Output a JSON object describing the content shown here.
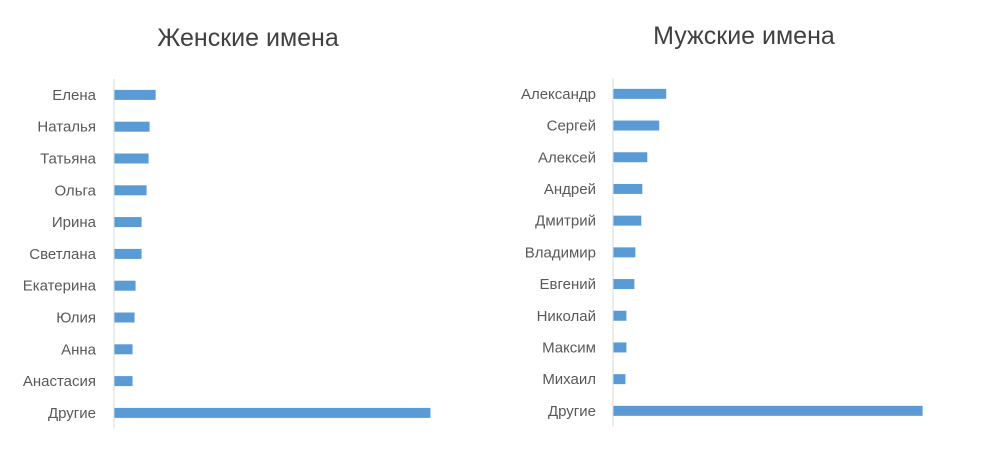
{
  "colors": {
    "bar": "#5b9bd5",
    "axis": "#d9d9d9",
    "title_text": "#404040",
    "label_text": "#595959",
    "background": "#ffffff"
  },
  "chart_data": [
    {
      "type": "bar",
      "orientation": "horizontal",
      "title": "Женские имена",
      "categories": [
        "Елена",
        "Наталья",
        "Татьяна",
        "Ольга",
        "Ирина",
        "Светлана",
        "Екатерина",
        "Юлия",
        "Анна",
        "Анастасия",
        "Другие"
      ],
      "values": [
        4.1,
        3.5,
        3.4,
        3.2,
        2.7,
        2.7,
        2.1,
        2.0,
        1.8,
        1.8,
        31.5
      ],
      "xlabel": "",
      "ylabel": "",
      "xlim": [
        0,
        33
      ],
      "x_tick_labels_shown": false,
      "grid": false,
      "legend": "none"
    },
    {
      "type": "bar",
      "orientation": "horizontal",
      "title": "Мужские имена",
      "categories": [
        "Александр",
        "Сергей",
        "Алексей",
        "Андрей",
        "Дмитрий",
        "Владимир",
        "Евгений",
        "Николай",
        "Максим",
        "Михаил",
        "Другие"
      ],
      "values": [
        5.3,
        4.6,
        3.4,
        2.9,
        2.8,
        2.2,
        2.1,
        1.3,
        1.3,
        1.2,
        31.1
      ],
      "xlabel": "",
      "ylabel": "",
      "xlim": [
        0,
        33
      ],
      "x_tick_labels_shown": false,
      "grid": false,
      "legend": "none"
    }
  ]
}
